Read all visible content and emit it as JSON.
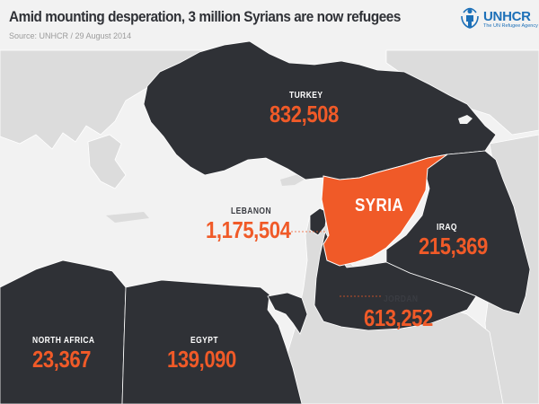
{
  "header": {
    "title": "Amid mounting desperation, 3 million Syrians are now refugees",
    "source": "Source: UNHCR / 29 August 2014"
  },
  "logo": {
    "name": "UNHCR",
    "tagline": "The UN Refugee Agency",
    "color": "#1d70b8"
  },
  "colors": {
    "land_host": "#2f3136",
    "land_other": "#dcdcdc",
    "sea": "#f2f2f2",
    "syria": "#f05a28",
    "figure": "#f05a28"
  },
  "regions": {
    "turkey": {
      "name": "TURKEY",
      "refugees": "832,508"
    },
    "syria": {
      "name": "SYRIA"
    },
    "lebanon": {
      "name": "LEBANON",
      "refugees": "1,175,504"
    },
    "iraq": {
      "name": "IRAQ",
      "refugees": "215,369"
    },
    "jordan": {
      "name": "JORDAN",
      "refugees": "613,252"
    },
    "north_africa": {
      "name": "NORTH AFRICA",
      "refugees": "23,367"
    },
    "egypt": {
      "name": "EGYPT",
      "refugees": "139,090"
    }
  }
}
